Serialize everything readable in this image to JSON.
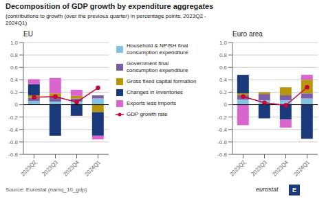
{
  "title": "Decomposition of GDP growth by expenditure aggregates",
  "subtitle": "(contributions to growth (over the previous quarter) in percentage points, 2023Q2 -\n2024Q1)",
  "annotations": [
    "Source: Eurostat (namq_10_gdp)",
    "eurostat",
    "E"
  ],
  "chart_data": [
    {
      "type": "bar",
      "title": "EU",
      "categories": [
        "2023Q2",
        "2023Q3",
        "2023Q4",
        "2024Q1"
      ],
      "stacked": true,
      "grid": true,
      "legend": "right",
      "ylim": [
        -0.8,
        1.0
      ],
      "yticks": [
        -0.8,
        -0.6,
        -0.4,
        -0.2,
        0,
        0.2,
        0.4,
        0.6,
        0.8,
        {
          "value": 1.0,
          "label": "1.0"
        }
      ],
      "series": [
        {
          "name": "Household & NPISH final\nconsumption expenditure",
          "type": "bar",
          "color": "#82c4e0",
          "values": [
            0.06,
            0.05,
            0.05,
            0.1
          ]
        },
        {
          "name": "Government final\nconsumption expenditure",
          "type": "bar",
          "color": "#7b5ea7",
          "values": [
            0.05,
            0.08,
            0.05,
            0.05
          ]
        },
        {
          "name": "Gross fixed capital formation",
          "type": "bar",
          "color": "#b8960c",
          "values": [
            0.04,
            0.05,
            0.04,
            -0.12
          ]
        },
        {
          "name": "Changes in Inventories",
          "type": "bar",
          "color": "#1a3a7c",
          "values": [
            0.18,
            -0.5,
            -0.18,
            -0.38
          ]
        },
        {
          "name": "Exports less imports",
          "type": "bar",
          "color": "#d966cc",
          "values": [
            0.08,
            0.25,
            0.1,
            -0.06
          ]
        },
        {
          "name": "GDP growth rate",
          "type": "line",
          "marker": "circle",
          "color": "#cc0033",
          "values": [
            0.12,
            0.13,
            0.04,
            0.27
          ]
        }
      ]
    },
    {
      "type": "bar",
      "title": "Euro area",
      "categories": [
        "2023Q2",
        "2023Q3",
        "2023Q4",
        "2024Q1"
      ],
      "stacked": true,
      "grid": true,
      "ylim": [
        -0.8,
        1.0
      ],
      "yticks": [
        -0.8,
        -0.6,
        -0.4,
        -0.2,
        0,
        0.2,
        0.4,
        0.6,
        0.8,
        {
          "value": 1.0,
          "label": "1.0"
        }
      ],
      "series": [
        {
          "name": "Household & NPISH final\nconsumption expenditure",
          "type": "bar",
          "color": "#82c4e0",
          "values": [
            0.08,
            0.07,
            0.07,
            0.1
          ]
        },
        {
          "name": "Government final\nconsumption expenditure",
          "type": "bar",
          "color": "#7b5ea7",
          "values": [
            0.07,
            0.1,
            0.08,
            0.08
          ]
        },
        {
          "name": "Gross fixed capital formation",
          "type": "bar",
          "color": "#b8960c",
          "values": [
            0.03,
            0.03,
            0.13,
            0.22
          ]
        },
        {
          "name": "Changes in Inventories",
          "type": "bar",
          "color": "#1a3a7c",
          "values": [
            0.3,
            -0.22,
            -0.24,
            -0.55
          ]
        },
        {
          "name": "Exports less imports",
          "type": "bar",
          "color": "#d966cc",
          "values": [
            -0.33,
            0.0,
            -0.13,
            0.08
          ]
        },
        {
          "name": "GDP growth rate",
          "type": "line",
          "marker": "circle",
          "color": "#cc0033",
          "values": [
            0.13,
            0.03,
            -0.01,
            0.28
          ]
        }
      ]
    }
  ]
}
